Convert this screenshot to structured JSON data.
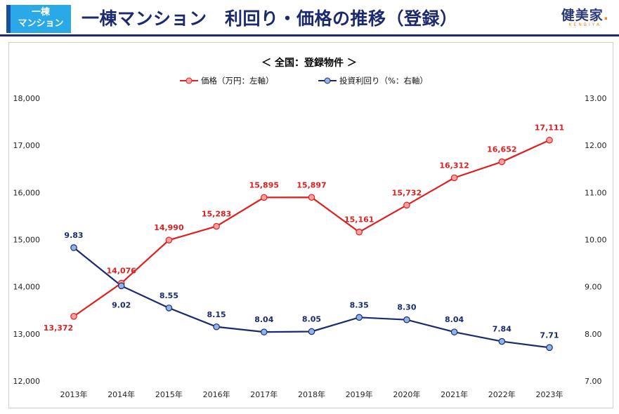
{
  "header": {
    "badge_line1": "一棟",
    "badge_line2": "マンション",
    "title": "一棟マンション　利回り・価格の推移（登録）",
    "logo_text": "健美家",
    "logo_dot": ".",
    "logo_sub": "KENBIYA"
  },
  "chart_data": {
    "type": "line",
    "title": "＜ 全国：登録物件 ＞",
    "categories": [
      "2013年",
      "2014年",
      "2015年",
      "2016年",
      "2017年",
      "2018年",
      "2019年",
      "2020年",
      "2021年",
      "2022年",
      "2023年"
    ],
    "y_left": {
      "min": 12000,
      "max": 18000,
      "ticks": [
        "12,000",
        "13,000",
        "14,000",
        "15,000",
        "16,000",
        "17,000",
        "18,000"
      ]
    },
    "y_right": {
      "min": 7.0,
      "max": 13.0,
      "ticks": [
        "7.00",
        "8.00",
        "9.00",
        "10.00",
        "11.00",
        "12.00",
        "13.00"
      ]
    },
    "legend_position": "top-center",
    "grid": false,
    "series": [
      {
        "name": "価格（万円：左軸）",
        "axis": "left",
        "color": "#e02020",
        "marker_fill": "#f5a0a0",
        "values": [
          13372,
          14076,
          14990,
          15283,
          15895,
          15897,
          15161,
          15732,
          16312,
          16652,
          17111
        ],
        "labels": [
          "13,372",
          "14,076",
          "14,990",
          "15,283",
          "15,895",
          "15,897",
          "15,161",
          "15,732",
          "16,312",
          "16,652",
          "17,111"
        ]
      },
      {
        "name": "投資利回り（%：右軸）",
        "axis": "right",
        "color": "#1b2a6e",
        "marker_fill": "#8fb4e6",
        "values": [
          9.83,
          9.02,
          8.55,
          8.15,
          8.04,
          8.05,
          8.35,
          8.3,
          8.04,
          7.84,
          7.71
        ],
        "labels": [
          "9.83",
          "9.02",
          "8.55",
          "8.15",
          "8.04",
          "8.05",
          "8.35",
          "8.30",
          "8.04",
          "7.84",
          "7.71"
        ]
      }
    ]
  }
}
